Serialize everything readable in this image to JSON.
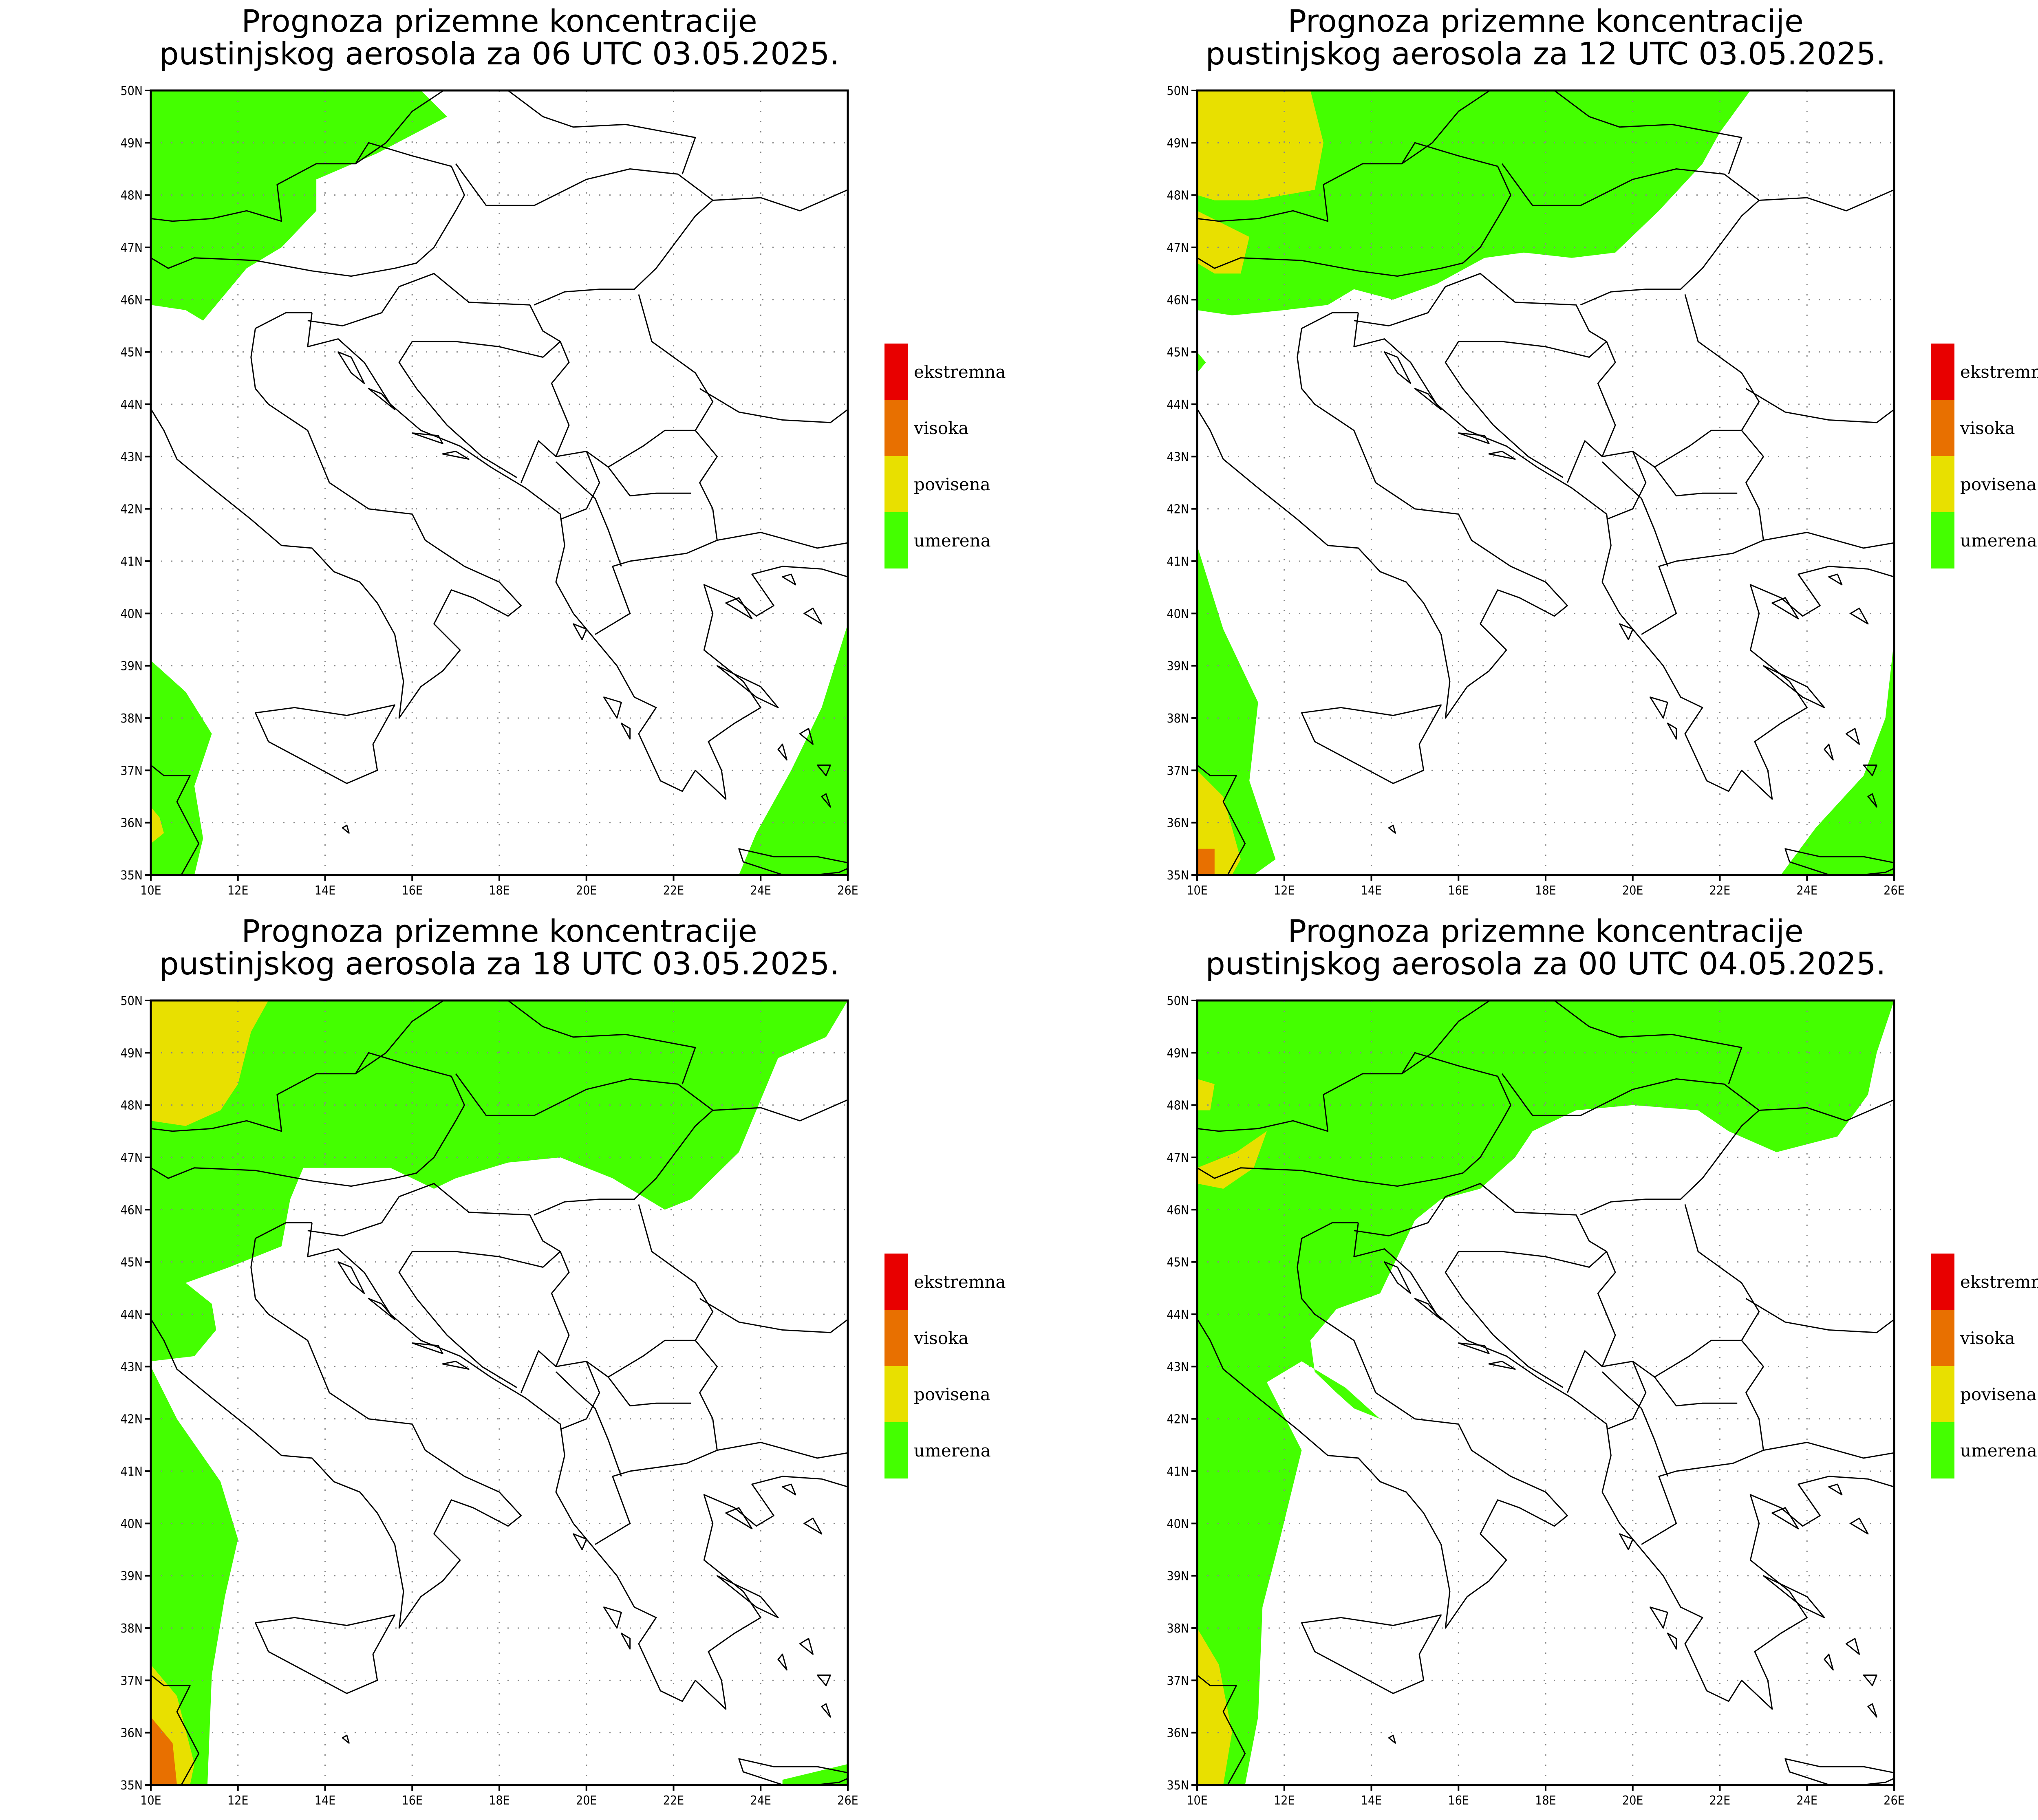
{
  "colors": {
    "green": "#44ff00",
    "yellow": "#e8e000",
    "orange": "#e87000",
    "red": "#e80000",
    "border": "#000000",
    "grid": "#888888"
  },
  "legend": [
    {
      "label": "ekstremna",
      "color": "#e80000"
    },
    {
      "label": "visoka",
      "color": "#e87000"
    },
    {
      "label": "povisena",
      "color": "#e8e000"
    },
    {
      "label": "umerena",
      "color": "#44ff00"
    }
  ],
  "x_ticks": [
    "10E",
    "12E",
    "14E",
    "16E",
    "18E",
    "20E",
    "22E",
    "24E",
    "26E"
  ],
  "y_ticks": [
    "35N",
    "36N",
    "37N",
    "38N",
    "39N",
    "40N",
    "41N",
    "42N",
    "43N",
    "44N",
    "45N",
    "46N",
    "47N",
    "48N",
    "49N",
    "50N"
  ],
  "panels": [
    {
      "title1": "Prognoza prizemne koncentracije",
      "title2": "pustinjskog aerosola za 06 UTC 03.05.2025."
    },
    {
      "title1": "Prognoza prizemne koncentracije",
      "title2": "pustinjskog aerosola za 12 UTC 03.05.2025."
    },
    {
      "title1": "Prognoza prizemne koncentracije",
      "title2": "pustinjskog aerosola za 18 UTC 03.05.2025."
    },
    {
      "title1": "Prognoza prizemne koncentracije",
      "title2": "pustinjskog aerosola za 00 UTC 04.05.2025."
    }
  ]
}
